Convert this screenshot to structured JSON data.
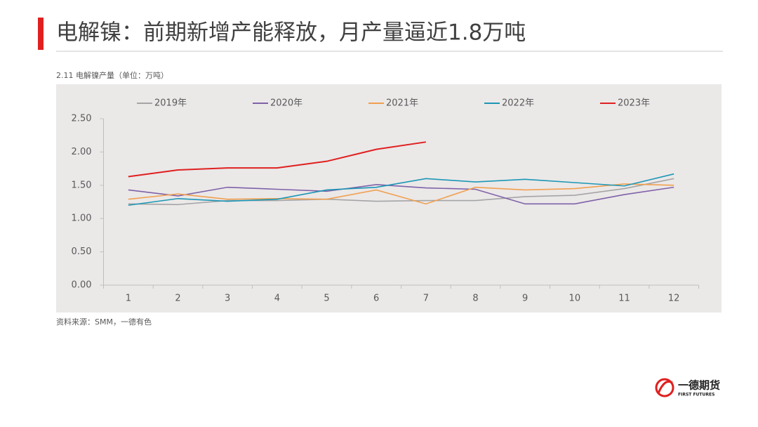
{
  "header": {
    "title": "电解镍：前期新增产能释放，月产量逼近1.8万吨"
  },
  "chart_data": {
    "type": "line",
    "title": "2.11 电解镍产量（单位：万吨）",
    "categories": [
      "1",
      "2",
      "3",
      "4",
      "5",
      "6",
      "7",
      "8",
      "9",
      "10",
      "11",
      "12"
    ],
    "series": [
      {
        "name": "2019年",
        "color": "#a5a5a5",
        "values": [
          1.22,
          1.21,
          1.27,
          1.27,
          1.29,
          1.26,
          1.27,
          1.27,
          1.33,
          1.35,
          1.45,
          1.6
        ]
      },
      {
        "name": "2020年",
        "color": "#7e62a8",
        "values": [
          1.43,
          1.34,
          1.47,
          1.44,
          1.41,
          1.51,
          1.46,
          1.44,
          1.22,
          1.22,
          1.36,
          1.47
        ]
      },
      {
        "name": "2021年",
        "color": "#f0a050",
        "values": [
          1.29,
          1.37,
          1.29,
          1.3,
          1.29,
          1.43,
          1.22,
          1.47,
          1.43,
          1.45,
          1.52,
          1.5
        ]
      },
      {
        "name": "2022年",
        "color": "#1b97b5",
        "values": [
          1.2,
          1.3,
          1.26,
          1.29,
          1.43,
          1.47,
          1.6,
          1.55,
          1.59,
          1.54,
          1.49,
          1.67
        ]
      },
      {
        "name": "2023年",
        "color": "#e02020",
        "values": [
          1.63,
          1.73,
          1.76,
          1.76,
          1.86,
          2.04,
          2.15,
          null,
          null,
          null,
          null,
          null
        ]
      }
    ],
    "ylim": [
      0,
      2.5
    ],
    "yticks": [
      {
        "value": 0,
        "label": "0.00"
      },
      {
        "value": 0.5,
        "label": "0.50"
      },
      {
        "value": 1,
        "label": "1.00"
      },
      {
        "value": 1.5,
        "label": "1.50"
      },
      {
        "value": 2,
        "label": "2.00"
      },
      {
        "value": 2.5,
        "label": "2.50"
      }
    ],
    "grid": false,
    "legend": "top"
  },
  "source": "资料来源：SMM，一德有色",
  "logo": {
    "name": "一德期货",
    "subtitle": "FIRST FUTURES"
  }
}
